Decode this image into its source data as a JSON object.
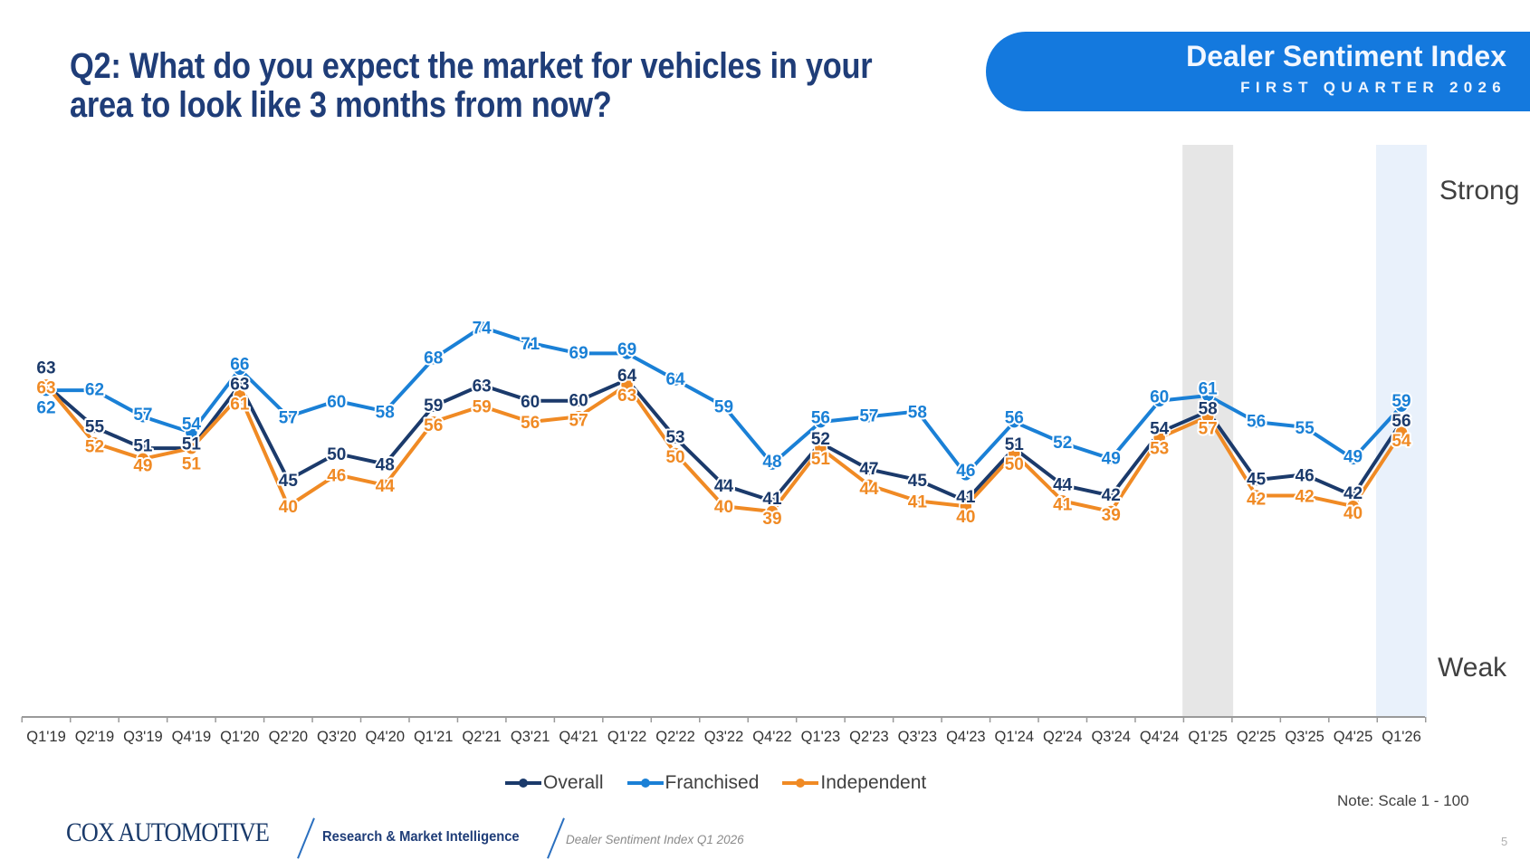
{
  "header": {
    "title_line1": "Q2: What do you expect the market for vehicles in your",
    "title_line2": "area to look like 3 months from now?",
    "banner_title": "Dealer Sentiment Index",
    "banner_subtitle": "FIRST QUARTER 2026",
    "banner_color": "#1479de"
  },
  "chart_data": {
    "type": "line",
    "title": "",
    "xlabel": "",
    "ylabel": "",
    "ylim": [
      0,
      100
    ],
    "y_top_label": "Strong",
    "y_bottom_label": "Weak",
    "grid": false,
    "legend_position": "bottom",
    "categories": [
      "Q1'19",
      "Q2'19",
      "Q3'19",
      "Q4'19",
      "Q1'20",
      "Q2'20",
      "Q3'20",
      "Q4'20",
      "Q1'21",
      "Q2'21",
      "Q3'21",
      "Q4'21",
      "Q1'22",
      "Q2'22",
      "Q3'22",
      "Q4'22",
      "Q1'23",
      "Q2'23",
      "Q3'23",
      "Q4'23",
      "Q1'24",
      "Q2'24",
      "Q3'24",
      "Q4'24",
      "Q1'25",
      "Q2'25",
      "Q3'25",
      "Q4'25",
      "Q1'26"
    ],
    "highlighted_categories": [
      {
        "category": "Q1'25",
        "color": "#e6e6e6"
      },
      {
        "category": "Q1'26",
        "color": "#e9f1fb"
      }
    ],
    "series": [
      {
        "name": "Franchised",
        "color": "#1a80d6",
        "values": [
          62,
          62,
          57,
          54,
          66,
          57,
          60,
          58,
          68,
          74,
          71,
          69,
          69,
          64,
          59,
          48,
          56,
          57,
          58,
          46,
          56,
          52,
          49,
          60,
          61,
          56,
          55,
          49,
          59
        ]
      },
      {
        "name": "Overall",
        "color": "#1b3a6b",
        "values": [
          63,
          55,
          51,
          51,
          63,
          45,
          50,
          48,
          59,
          63,
          60,
          60,
          64,
          53,
          44,
          41,
          52,
          47,
          45,
          41,
          51,
          44,
          42,
          54,
          58,
          45,
          46,
          42,
          56
        ]
      },
      {
        "name": "Independent",
        "color": "#f08a24",
        "values": [
          63,
          52,
          49,
          51,
          61,
          40,
          46,
          44,
          56,
          59,
          56,
          57,
          63,
          50,
          40,
          39,
          51,
          44,
          41,
          40,
          50,
          41,
          39,
          53,
          57,
          42,
          42,
          40,
          54
        ]
      }
    ],
    "note": "Note: Scale 1 - 100"
  },
  "footer": {
    "logo": "COX AUTOMOTIVE",
    "division": "Research & Market Intelligence",
    "report": "Dealer Sentiment Index Q1 2026",
    "page": "5"
  }
}
